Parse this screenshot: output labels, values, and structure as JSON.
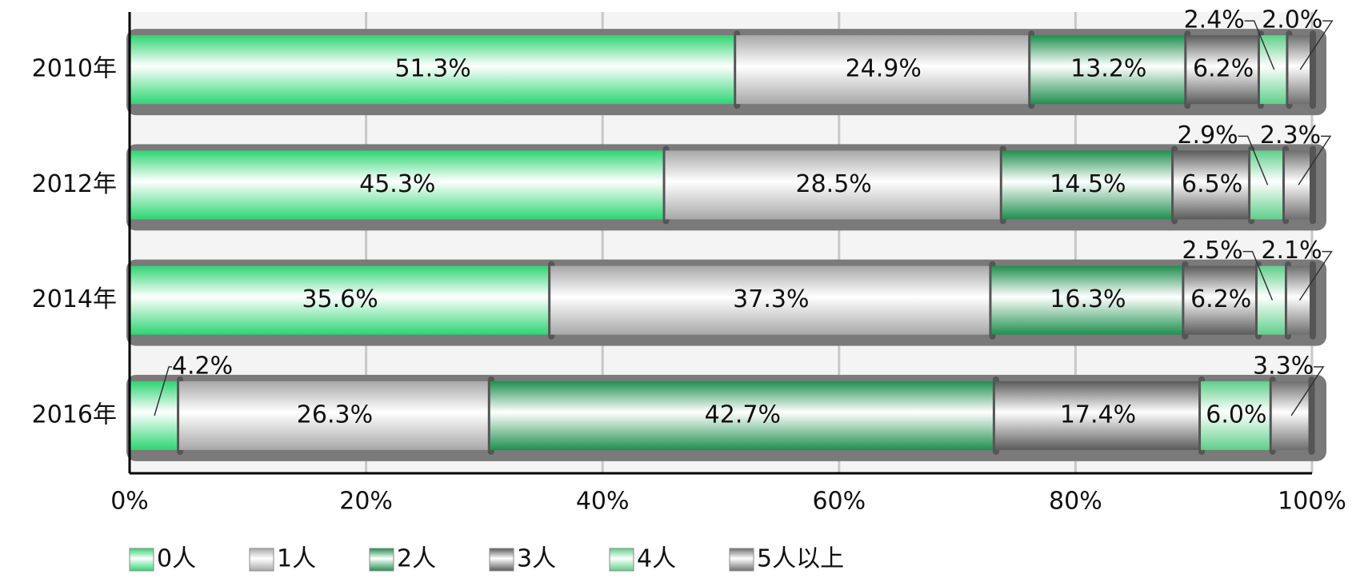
{
  "chart_data": {
    "type": "stacked-barh",
    "categories": [
      "2010年",
      "2012年",
      "2014年",
      "2016年"
    ],
    "series": [
      {
        "name": "0人",
        "color": "#2ed573",
        "values": [
          51.3,
          45.3,
          35.6,
          4.2
        ],
        "value_labels": [
          "51.3%",
          "45.3%",
          "35.6%",
          "4.2%"
        ]
      },
      {
        "name": "1人",
        "color": "#a8a8a8",
        "values": [
          24.9,
          28.5,
          37.3,
          26.3
        ],
        "value_labels": [
          "24.9%",
          "28.5%",
          "37.3%",
          "26.3%"
        ]
      },
      {
        "name": "2人",
        "color": "#1f8f4e",
        "values": [
          13.2,
          14.5,
          16.3,
          42.7
        ],
        "value_labels": [
          "13.2%",
          "14.5%",
          "16.3%",
          "42.7%"
        ]
      },
      {
        "name": "3人",
        "color": "#5a5a5a",
        "values": [
          6.2,
          6.5,
          6.2,
          17.4
        ],
        "value_labels": [
          "6.2%",
          "6.5%",
          "6.2%",
          "17.4%"
        ]
      },
      {
        "name": "4人",
        "color": "#5fcf8a",
        "values": [
          2.4,
          2.9,
          2.5,
          6.0
        ],
        "value_labels": [
          "2.4%",
          "2.9%",
          "2.5%",
          "6.0%"
        ]
      },
      {
        "name": "5人以上",
        "color": "#6e6e6e",
        "values": [
          2.0,
          2.3,
          2.1,
          3.3
        ],
        "value_labels": [
          "2.0%",
          "2.3%",
          "2.1%",
          "3.3%"
        ]
      }
    ],
    "xlim": [
      0,
      100
    ],
    "xticks": [
      {
        "value": 0,
        "label": "0%"
      },
      {
        "value": 20,
        "label": "20%"
      },
      {
        "value": 40,
        "label": "40%"
      },
      {
        "value": 60,
        "label": "60%"
      },
      {
        "value": 80,
        "label": "80%"
      },
      {
        "value": 100,
        "label": "100%"
      }
    ],
    "grid": true,
    "legend": "bottom"
  }
}
